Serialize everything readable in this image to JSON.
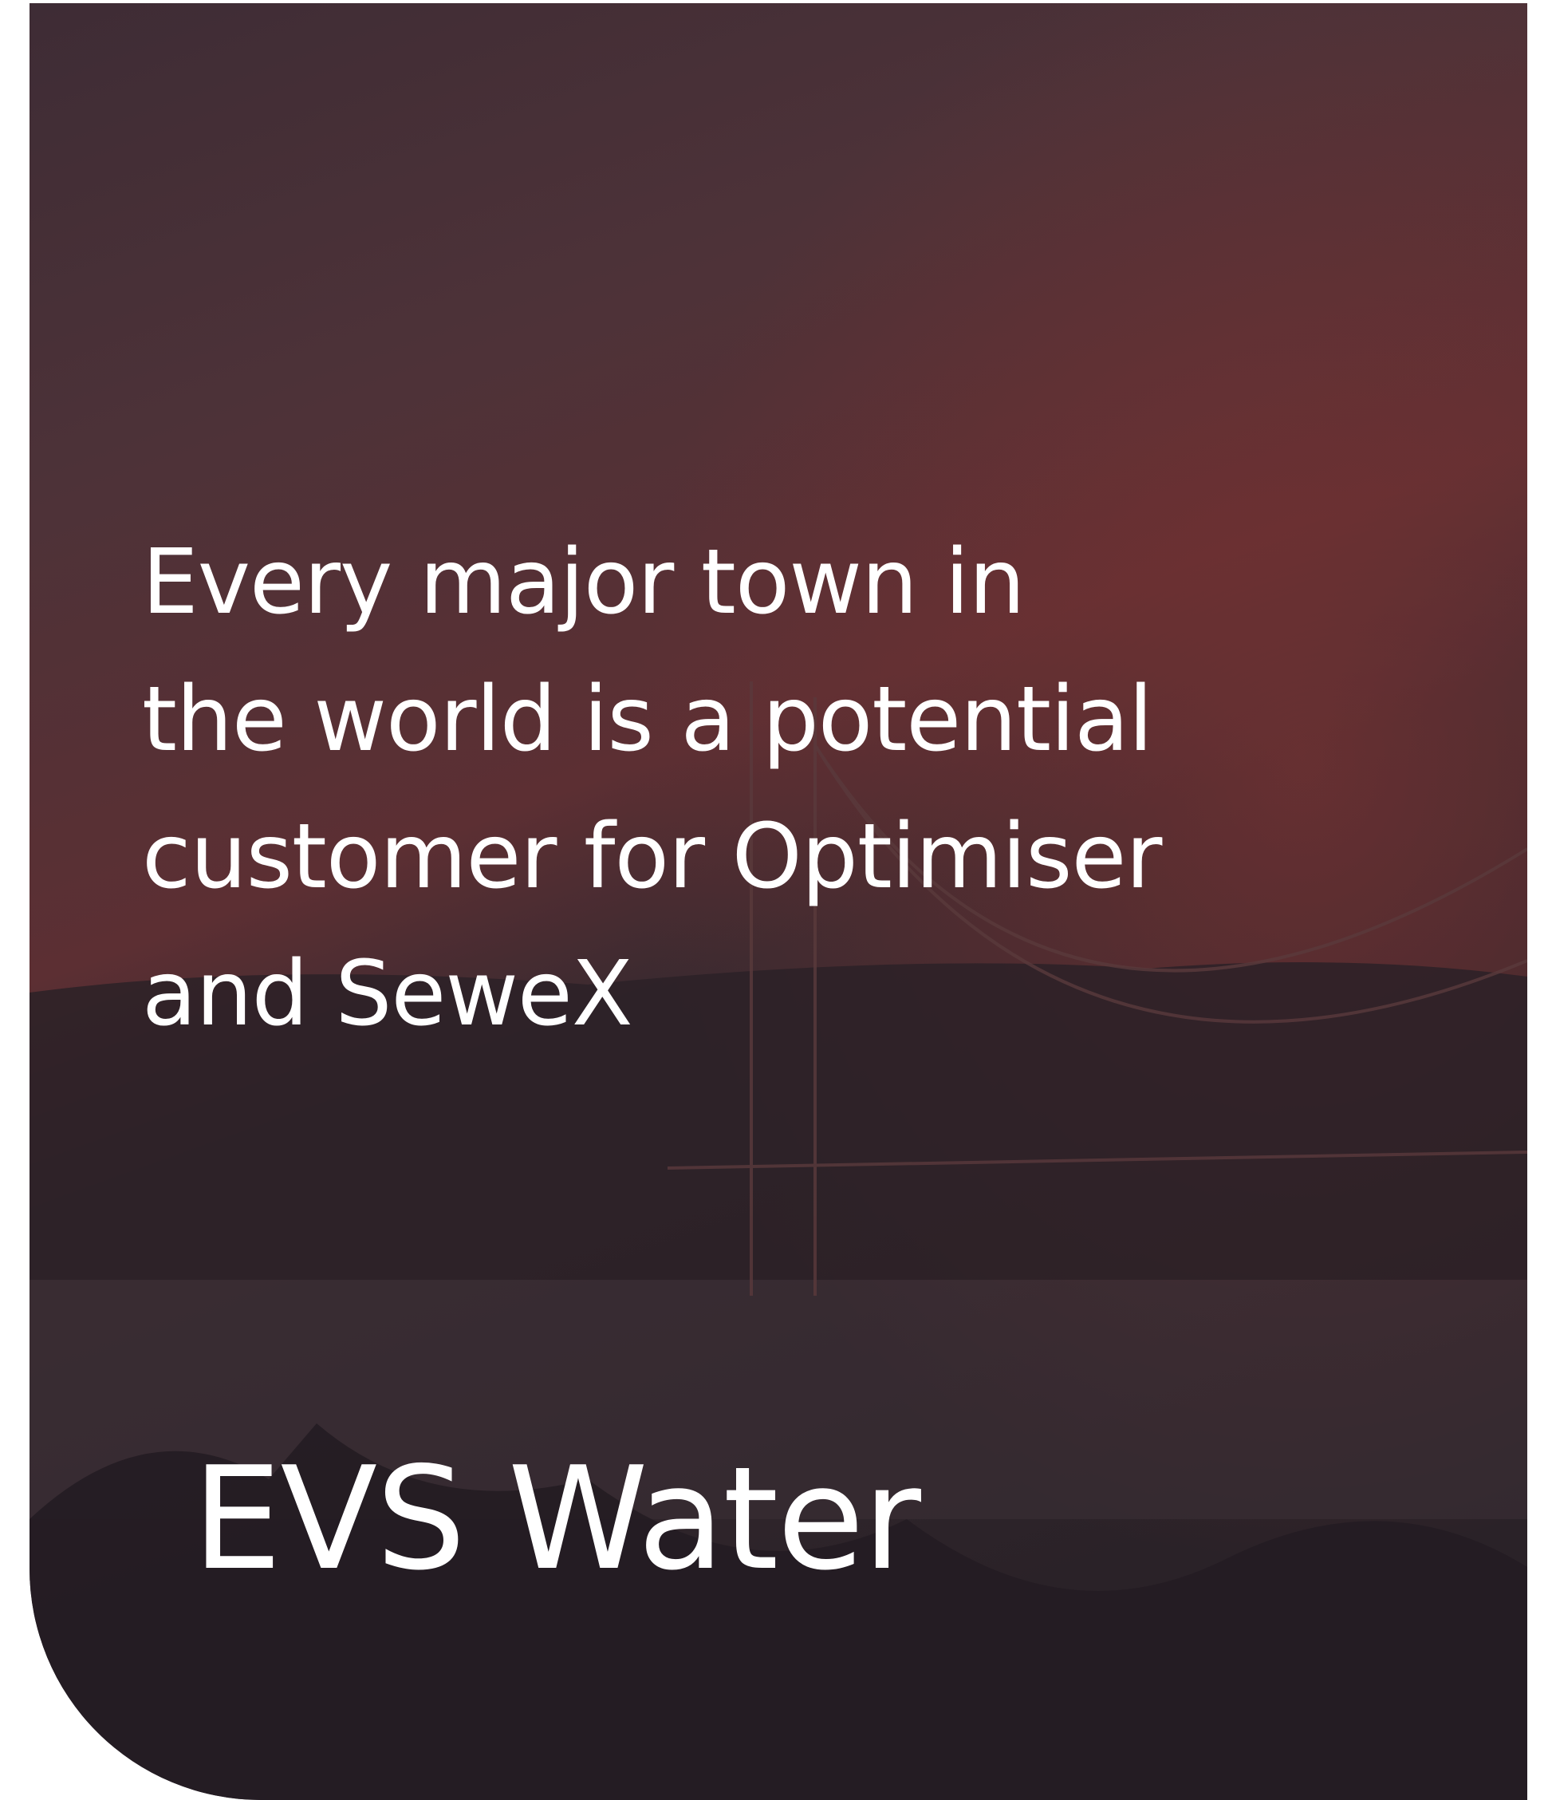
{
  "quote": {
    "lines": [
      "Every major town in",
      "the world is a potential",
      "customer for Optimiser",
      "and SeweX"
    ]
  },
  "brand": "EVS Water"
}
